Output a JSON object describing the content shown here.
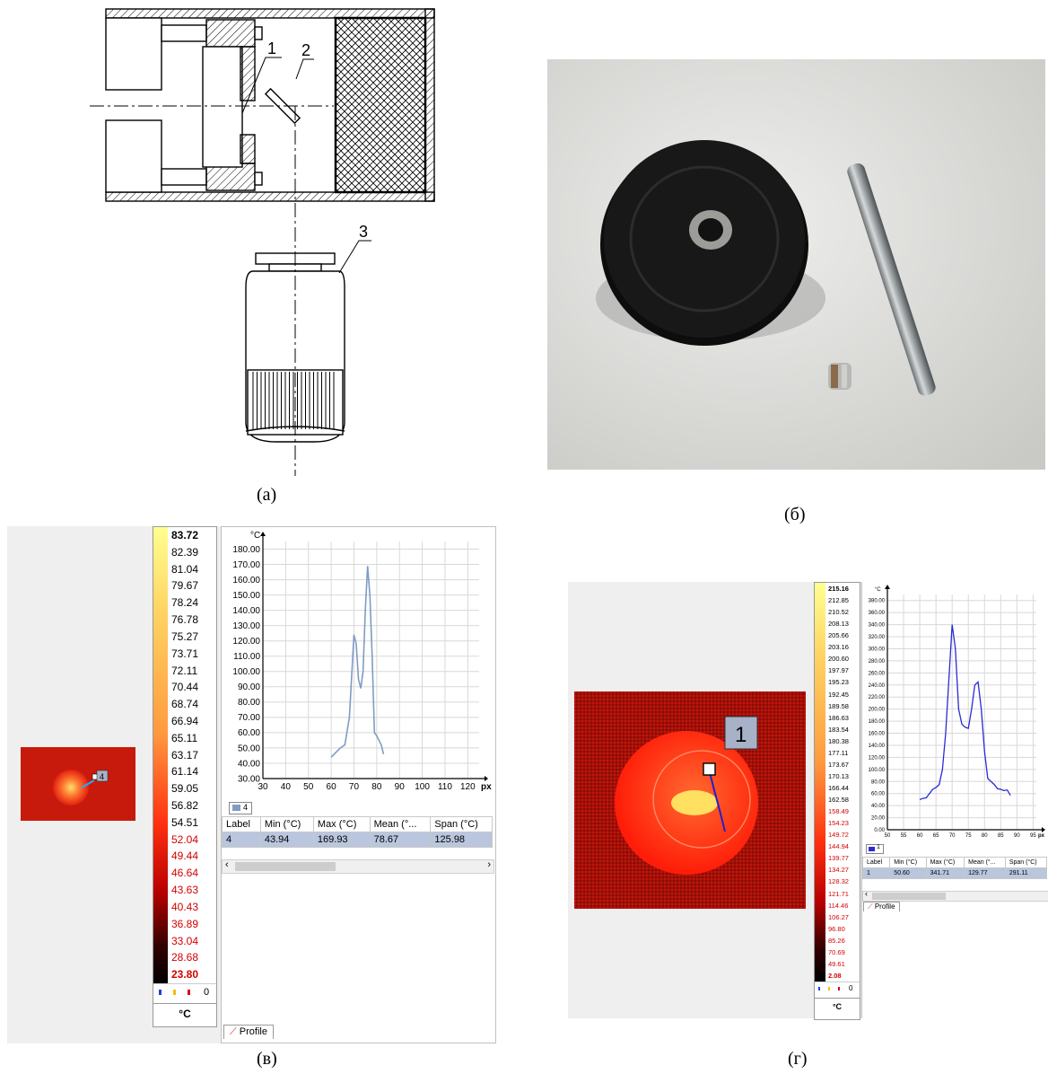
{
  "figure": {
    "captions": {
      "a": "(а)",
      "b": "(б)",
      "v": "(в)",
      "g": "(г)"
    },
    "schematic": {
      "labels": [
        "1",
        "2",
        "3"
      ]
    },
    "panel_v": {
      "marker_label": "4",
      "scale_values": [
        "83.72",
        "82.39",
        "81.04",
        "79.67",
        "78.24",
        "76.78",
        "75.27",
        "73.71",
        "72.11",
        "70.44",
        "68.74",
        "66.94",
        "65.11",
        "63.17",
        "61.14",
        "59.05",
        "56.82",
        "54.51",
        "52.04",
        "49.44",
        "46.64",
        "43.63",
        "40.43",
        "36.89",
        "33.04",
        "28.68",
        "23.80"
      ],
      "scale_unit": "°C",
      "legend_count": "0",
      "chart_unit": "°C",
      "legend_chip": "4",
      "table": {
        "headers": [
          "Label",
          "Min (°C)",
          "Max (°C)",
          "Mean (°...",
          "Span (°C)"
        ],
        "row": [
          "4",
          "43.94",
          "169.93",
          "78.67",
          "125.98"
        ]
      },
      "tab_label": "Profile"
    },
    "panel_g": {
      "marker_label": "1",
      "scale_values": [
        "215.16",
        "212.85",
        "210.52",
        "208.13",
        "205.66",
        "203.16",
        "200.60",
        "197.97",
        "195.23",
        "192.45",
        "189.58",
        "186.63",
        "183.54",
        "180.38",
        "177.11",
        "173.67",
        "170.13",
        "166.44",
        "162.58",
        "158.49",
        "154.23",
        "149.72",
        "144.94",
        "139.77",
        "134.27",
        "128.32",
        "121.71",
        "114.46",
        "106.27",
        "96.80",
        "85.26",
        "70.69",
        "49.61",
        "2.08"
      ],
      "scale_unit": "°C",
      "legend_count": "0",
      "chart_unit": "°C",
      "legend_chip": "1",
      "table": {
        "headers": [
          "Label",
          "Min (°C)",
          "Max (°C)",
          "Mean (°...",
          "Span (°C)"
        ],
        "row": [
          "1",
          "50.60",
          "341.71",
          "129.77",
          "291.11"
        ]
      },
      "tab_label": "Profile"
    },
    "colors": {
      "profile_v": "#7f9cc4",
      "profile_g": "#2a2ad8",
      "scale_red_text": "#d40000"
    }
  },
  "chart_data": [
    {
      "type": "line",
      "title": "",
      "xlabel": "px",
      "ylabel": "°C",
      "xlim": [
        30,
        125
      ],
      "ylim": [
        30,
        185
      ],
      "xticks": [
        30,
        40,
        50,
        60,
        70,
        80,
        90,
        100,
        110,
        120
      ],
      "yticks": [
        30,
        40,
        50,
        60,
        70,
        80,
        90,
        100,
        110,
        120,
        130,
        140,
        150,
        160,
        170,
        180
      ],
      "grid": true,
      "series": [
        {
          "x": [
            60,
            62,
            64,
            66,
            68,
            70,
            71,
            72,
            73,
            74,
            75,
            76,
            77,
            78,
            79,
            80,
            81,
            82,
            83
          ],
          "y": [
            44,
            47,
            50,
            52,
            70,
            124,
            118,
            95,
            89,
            100,
            140,
            169,
            150,
            110,
            60,
            58,
            55,
            52,
            46
          ]
        }
      ]
    },
    {
      "type": "line",
      "title": "",
      "xlabel": "px",
      "ylabel": "°C",
      "xlim": [
        50,
        96
      ],
      "ylim": [
        0,
        390
      ],
      "xticks": [
        50,
        55,
        60,
        65,
        70,
        75,
        80,
        85,
        90,
        95
      ],
      "yticks": [
        0,
        20,
        40,
        60,
        80,
        100,
        120,
        140,
        160,
        180,
        200,
        220,
        240,
        260,
        280,
        300,
        320,
        340,
        360,
        380
      ],
      "grid": true,
      "series": [
        {
          "x": [
            60,
            61,
            62,
            63,
            64,
            65,
            66,
            67,
            68,
            69,
            70,
            71,
            72,
            73,
            74,
            75,
            76,
            77,
            78,
            79,
            80,
            81,
            82,
            83,
            84,
            85,
            86,
            87,
            88
          ],
          "y": [
            50,
            52,
            53,
            60,
            67,
            70,
            75,
            100,
            160,
            250,
            340,
            300,
            200,
            175,
            170,
            168,
            200,
            240,
            245,
            200,
            130,
            85,
            80,
            75,
            68,
            67,
            65,
            66,
            57
          ]
        }
      ]
    }
  ]
}
